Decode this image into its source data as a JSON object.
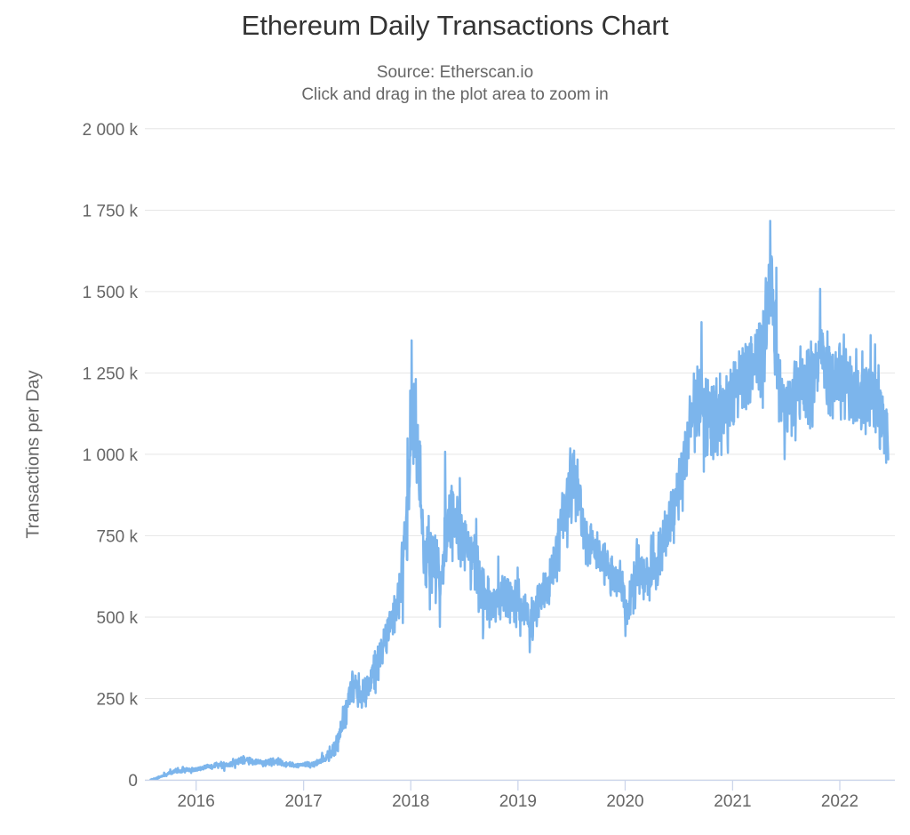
{
  "chart": {
    "title": "Ethereum Daily Transactions Chart",
    "subtitle": [
      "Source: Etherscan.io",
      "Click and drag in the plot area to zoom in"
    ],
    "y_axis_title": "Transactions per Day",
    "colors": {
      "series_line": "#7cb5ec",
      "axis_line": "#ccd6eb",
      "gridline": "#e6e6e6",
      "title_text": "#333333",
      "label_text": "#666666",
      "background": "#ffffff"
    }
  },
  "chart_data": {
    "type": "line",
    "title": "Ethereum Daily Transactions Chart",
    "subtitle": [
      "Source: Etherscan.io",
      "Click and drag in the plot area to zoom in"
    ],
    "xlabel": "",
    "ylabel": "Transactions per Day",
    "legend": "none",
    "grid": "horizontal-only",
    "x_tick_labels": [
      "2016",
      "2017",
      "2018",
      "2019",
      "2020",
      "2021",
      "2022"
    ],
    "y_tick_labels": [
      "0",
      "250 k",
      "500 k",
      "750 k",
      "1 000 k",
      "1 250 k",
      "1 500 k",
      "1 750 k",
      "2 000 k"
    ],
    "y_tick_values_k": [
      0,
      250,
      500,
      750,
      1000,
      1250,
      1500,
      1750,
      2000
    ],
    "ylim_k": [
      0,
      2000
    ],
    "x_range": [
      "2015-07-30",
      "2022-06-15"
    ],
    "units": "thousands of transactions per day",
    "series": [
      {
        "name": "Transactions per Day",
        "color": "#7cb5ec",
        "monthly_anchors_k": [
          [
            "2015-07-30",
            1,
            1
          ],
          [
            "2015-08",
            3,
            2
          ],
          [
            "2015-09",
            14,
            4
          ],
          [
            "2015-10",
            25,
            5
          ],
          [
            "2015-11",
            28,
            5
          ],
          [
            "2015-12",
            32,
            6
          ],
          [
            "2016-01",
            34,
            6
          ],
          [
            "2016-02",
            41,
            7
          ],
          [
            "2016-03",
            46,
            8
          ],
          [
            "2016-04",
            46,
            7
          ],
          [
            "2016-05",
            56,
            10
          ],
          [
            "2016-06",
            62,
            10
          ],
          [
            "2016-07",
            53,
            7
          ],
          [
            "2016-08",
            52,
            7
          ],
          [
            "2016-09",
            57,
            11
          ],
          [
            "2016-10",
            52,
            10
          ],
          [
            "2016-11",
            47,
            6
          ],
          [
            "2016-12",
            45,
            5
          ],
          [
            "2017-01",
            47,
            6
          ],
          [
            "2017-02",
            52,
            7
          ],
          [
            "2017-03",
            66,
            12
          ],
          [
            "2017-04",
            92,
            20
          ],
          [
            "2017-05",
            175,
            35
          ],
          [
            "2017-06",
            290,
            40
          ],
          [
            "2017-07",
            245,
            35
          ],
          [
            "2017-08",
            295,
            45
          ],
          [
            "2017-09",
            385,
            50
          ],
          [
            "2017-10",
            465,
            45
          ],
          [
            "2017-11",
            525,
            50
          ],
          [
            "2017-12",
            760,
            90
          ],
          [
            "2018-01",
            1120,
            140
          ],
          [
            "2018-02",
            730,
            90
          ],
          [
            "2018-03",
            685,
            80
          ],
          [
            "2018-04",
            610,
            85
          ],
          [
            "2018-05",
            830,
            95
          ],
          [
            "2018-06",
            765,
            80
          ],
          [
            "2018-07",
            720,
            70
          ],
          [
            "2018-08",
            645,
            70
          ],
          [
            "2018-09",
            560,
            55
          ],
          [
            "2018-10",
            548,
            50
          ],
          [
            "2018-11",
            562,
            55
          ],
          [
            "2018-12",
            568,
            60
          ],
          [
            "2019-01",
            532,
            55
          ],
          [
            "2019-02",
            478,
            50
          ],
          [
            "2019-03",
            548,
            50
          ],
          [
            "2019-04",
            592,
            55
          ],
          [
            "2019-05",
            705,
            70
          ],
          [
            "2019-06",
            872,
            85
          ],
          [
            "2019-07",
            928,
            80
          ],
          [
            "2019-08",
            745,
            60
          ],
          [
            "2019-09",
            705,
            55
          ],
          [
            "2019-10",
            678,
            55
          ],
          [
            "2019-11",
            642,
            60
          ],
          [
            "2019-12",
            588,
            60
          ],
          [
            "2020-01",
            558,
            70
          ],
          [
            "2020-02",
            642,
            60
          ],
          [
            "2020-03",
            622,
            70
          ],
          [
            "2020-04",
            662,
            55
          ],
          [
            "2020-05",
            762,
            55
          ],
          [
            "2020-06",
            842,
            55
          ],
          [
            "2020-07",
            925,
            65
          ],
          [
            "2020-08",
            1125,
            80
          ],
          [
            "2020-09",
            1168,
            105
          ],
          [
            "2020-10",
            1092,
            75
          ],
          [
            "2020-11",
            1128,
            75
          ],
          [
            "2020-12",
            1142,
            65
          ],
          [
            "2021-01",
            1222,
            80
          ],
          [
            "2021-02",
            1262,
            90
          ],
          [
            "2021-03",
            1252,
            85
          ],
          [
            "2021-04",
            1335,
            95
          ],
          [
            "2021-05",
            1470,
            125
          ],
          [
            "2021-06",
            1145,
            90
          ],
          [
            "2021-07",
            1132,
            80
          ],
          [
            "2021-08",
            1205,
            80
          ],
          [
            "2021-09",
            1225,
            90
          ],
          [
            "2021-10",
            1272,
            95
          ],
          [
            "2021-11",
            1252,
            90
          ],
          [
            "2021-12",
            1222,
            80
          ],
          [
            "2022-01",
            1248,
            75
          ],
          [
            "2022-02",
            1192,
            70
          ],
          [
            "2022-03",
            1162,
            65
          ],
          [
            "2022-04",
            1185,
            75
          ],
          [
            "2022-05",
            1148,
            75
          ],
          [
            "2022-06-15",
            1040,
            45
          ]
        ],
        "key_points_k": [
          [
            "2017-06-27",
            320
          ],
          [
            "2018-01-04",
            1350
          ],
          [
            "2018-04-10",
            470
          ],
          [
            "2018-04-28",
            1008
          ],
          [
            "2019-02-10",
            392
          ],
          [
            "2019-06-28",
            1018
          ],
          [
            "2020-01-02",
            442
          ],
          [
            "2020-09-17",
            1406
          ],
          [
            "2021-05-04",
            1580
          ],
          [
            "2021-05-09",
            1717
          ],
          [
            "2021-06-27",
            985
          ],
          [
            "2021-10-26",
            1508
          ],
          [
            "2022-01-01",
            1340
          ],
          [
            "2022-05-01",
            1338
          ],
          [
            "2022-06-14",
            1018
          ]
        ]
      }
    ]
  }
}
